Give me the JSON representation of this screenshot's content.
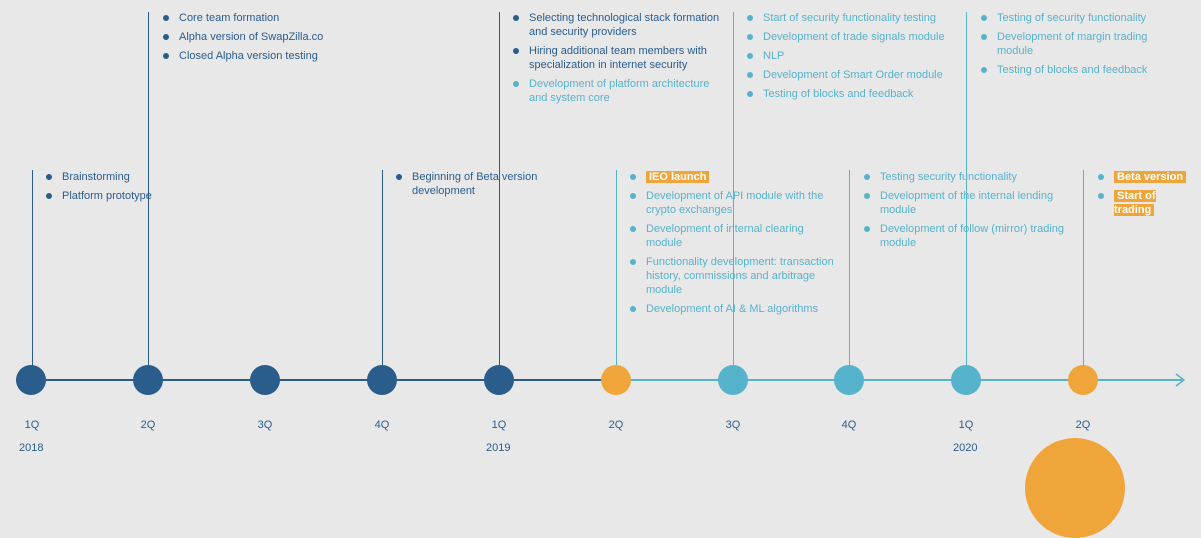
{
  "colors": {
    "dark": "#2a5d8c",
    "light": "#56b3cc",
    "accent": "#f0a53b",
    "background": "#e8e8e8"
  },
  "timeline": {
    "quarters": [
      "1Q",
      "2Q",
      "3Q",
      "4Q",
      "1Q",
      "2Q",
      "3Q",
      "4Q",
      "1Q",
      "2Q"
    ],
    "years": [
      "2018",
      "2019",
      "2020"
    ]
  },
  "milestones": {
    "q1_2018": [
      "Brainstorming",
      "Platform prototype"
    ],
    "q2_2018": [
      "Core team formation",
      "Alpha version of SwapZilla.co",
      "Closed Alpha version testing"
    ],
    "q4_2018": [
      "Beginning of Beta version development"
    ],
    "q1_2019": [
      "Selecting technological stack formation and security providers",
      "Hiring additional team members with specialization in internet security",
      "Development of platform architecture and system core"
    ],
    "q2_2019": [
      "IEO launch",
      "Development of API module with the crypto exchanges",
      "Development of internal clearing module",
      "Functionality development: transaction history, commissions and arbitrage module",
      "Development of AI & ML algorithms"
    ],
    "q3_2019": [
      "Start of security functionality testing",
      "Development of trade signals module",
      "NLP",
      "Development of Smart Order module",
      "Testing of blocks and feedback"
    ],
    "q4_2019": [
      "Testing security functionality",
      "Development of the internal lending module",
      "Development of follow (mirror) trading module"
    ],
    "q1_2020": [
      "Testing of security functionality",
      "Development of margin trading module",
      "Testing of blocks and feedback"
    ],
    "q2_2020": [
      "Beta version",
      "Start of trading"
    ]
  }
}
